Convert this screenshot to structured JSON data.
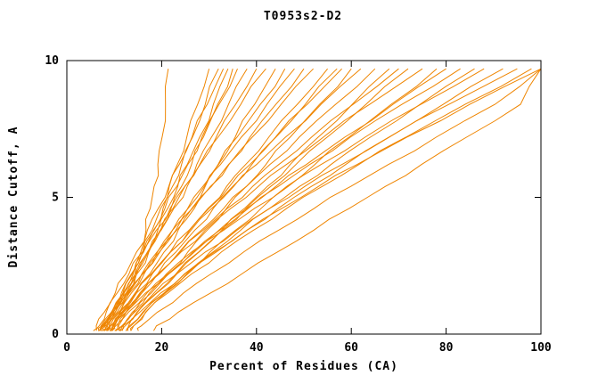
{
  "chart_data": {
    "type": "line",
    "title": "T0953s2-D2",
    "xlabel": "Percent of Residues (CA)",
    "ylabel": "Distance Cutoff, A",
    "xlim": [
      0,
      100
    ],
    "ylim": [
      0,
      10
    ],
    "xticks": [
      0,
      20,
      40,
      60,
      80,
      100
    ],
    "yticks": [
      0,
      5,
      10
    ],
    "grid": false,
    "legend": "none",
    "line_color": "#ef8500",
    "axis_color": "#000000",
    "y_levels": [
      0.3,
      0.8,
      1.5,
      2.2,
      3.0,
      3.8,
      4.6,
      5.4,
      6.2,
      7.2,
      8.4,
      9.7
    ],
    "curves": [
      [
        9.2,
        11.3,
        13.1,
        14.4,
        15.6,
        16.7,
        17.6,
        18.4,
        19.2,
        20.1,
        20.8,
        21.4
      ],
      [
        7.2,
        9.4,
        11.8,
        13.8,
        16.0,
        18.0,
        19.8,
        21.6,
        23.3,
        25.3,
        27.6,
        30.0
      ],
      [
        7.6,
        9.5,
        11.9,
        14.0,
        16.2,
        18.3,
        20.3,
        22.3,
        24.2,
        26.5,
        29.2,
        32.0
      ],
      [
        6.2,
        7.9,
        10.2,
        12.4,
        14.7,
        17.0,
        19.3,
        21.5,
        23.7,
        26.4,
        29.6,
        33.0
      ],
      [
        7.8,
        9.9,
        12.5,
        14.8,
        17.3,
        19.7,
        22.0,
        24.2,
        26.3,
        28.8,
        31.8,
        35.0
      ],
      [
        8.4,
        10.2,
        12.6,
        14.7,
        17.0,
        19.2,
        21.3,
        23.4,
        25.4,
        28.0,
        30.9,
        34.0
      ],
      [
        7.9,
        9.4,
        11.5,
        13.6,
        16.0,
        18.4,
        20.7,
        23.2,
        25.5,
        28.5,
        32.1,
        36.0
      ],
      [
        7.4,
        9.4,
        12.0,
        14.4,
        17.1,
        19.8,
        22.4,
        24.9,
        27.4,
        30.5,
        34.1,
        38.0
      ],
      [
        8.0,
        9.7,
        12.1,
        14.5,
        17.2,
        19.9,
        22.6,
        25.4,
        28.1,
        31.5,
        35.6,
        40.0
      ],
      [
        6.8,
        8.3,
        10.6,
        13.1,
        15.9,
        18.9,
        21.8,
        24.9,
        28.0,
        31.9,
        36.7,
        42.0
      ],
      [
        9.6,
        11.8,
        14.7,
        17.5,
        20.5,
        23.5,
        26.4,
        29.2,
        32.0,
        35.5,
        39.6,
        44.0
      ],
      [
        8.2,
        10.2,
        13.0,
        15.9,
        19.1,
        22.3,
        25.5,
        28.7,
        31.9,
        35.9,
        40.8,
        46.0
      ],
      [
        8.9,
        10.6,
        13.2,
        15.8,
        19.0,
        22.3,
        25.6,
        29.0,
        32.4,
        36.8,
        42.2,
        48.0
      ],
      [
        7.4,
        9.6,
        12.8,
        16.0,
        19.6,
        23.2,
        26.9,
        30.5,
        34.1,
        38.6,
        44.1,
        50.0
      ],
      [
        9.7,
        11.1,
        13.6,
        16.3,
        19.5,
        23.0,
        26.5,
        30.3,
        34.2,
        39.1,
        45.2,
        52.0
      ],
      [
        8.5,
        10.9,
        14.4,
        17.9,
        21.8,
        25.8,
        29.8,
        33.7,
        37.7,
        42.6,
        48.6,
        55.0
      ],
      [
        10.3,
        12.5,
        15.8,
        19.2,
        23.0,
        27.0,
        30.9,
        35.0,
        39.0,
        44.1,
        50.3,
        57.0
      ],
      [
        9.1,
        11.2,
        14.5,
        17.8,
        21.8,
        25.9,
        30.0,
        34.3,
        38.6,
        44.0,
        50.7,
        58.0
      ],
      [
        11.6,
        14.1,
        17.8,
        21.4,
        25.5,
        29.6,
        33.7,
        37.9,
        42.0,
        47.1,
        53.3,
        60.0
      ],
      [
        9.8,
        11.6,
        14.7,
        18.0,
        21.9,
        26.2,
        30.6,
        35.2,
        40.0,
        46.1,
        53.6,
        62.0
      ],
      [
        9.3,
        11.6,
        15.4,
        19.2,
        23.7,
        28.4,
        33.1,
        37.9,
        42.8,
        49.0,
        56.7,
        65.0
      ],
      [
        11.8,
        14.8,
        19.0,
        23.2,
        27.9,
        32.7,
        37.5,
        42.3,
        47.1,
        53.0,
        60.2,
        68.0
      ],
      [
        9.9,
        12.0,
        15.5,
        19.3,
        23.9,
        28.8,
        33.9,
        39.2,
        44.7,
        51.6,
        60.4,
        70.0
      ],
      [
        12.3,
        14.9,
        18.9,
        23.0,
        27.8,
        32.8,
        37.8,
        43.0,
        48.3,
        54.9,
        63.1,
        72.0
      ],
      [
        10.7,
        12.5,
        15.8,
        19.5,
        24.1,
        29.2,
        34.6,
        40.4,
        46.3,
        54.1,
        63.9,
        75.0
      ],
      [
        13.5,
        16.2,
        20.5,
        24.9,
        30.2,
        35.6,
        41.0,
        46.7,
        52.3,
        59.5,
        68.4,
        78.0
      ],
      [
        10.1,
        12.5,
        16.6,
        21.0,
        26.3,
        32.1,
        38.0,
        44.1,
        50.5,
        58.6,
        68.8,
        80.0
      ],
      [
        11.8,
        13.8,
        17.4,
        21.5,
        26.6,
        32.3,
        38.3,
        44.6,
        51.2,
        59.8,
        70.7,
        83.0
      ],
      [
        14.1,
        16.6,
        20.8,
        25.3,
        30.8,
        36.7,
        42.8,
        49.1,
        55.7,
        64.0,
        74.5,
        86.0
      ],
      [
        10.9,
        13.0,
        16.9,
        21.3,
        26.9,
        33.1,
        39.6,
        46.4,
        53.6,
        62.9,
        74.7,
        88.0
      ],
      [
        13.2,
        16.0,
        20.6,
        25.5,
        31.5,
        38.0,
        44.6,
        51.6,
        58.8,
        67.9,
        79.4,
        92.0
      ],
      [
        11.9,
        14.3,
        18.4,
        23.2,
        29.2,
        35.9,
        42.8,
        50.2,
        58.0,
        68.0,
        80.6,
        95.0
      ],
      [
        14.1,
        16.7,
        21.3,
        26.3,
        32.6,
        39.4,
        46.4,
        53.9,
        61.6,
        71.5,
        84.0,
        98.0
      ],
      [
        13.0,
        15.4,
        19.8,
        24.8,
        31.1,
        38.0,
        45.4,
        53.1,
        61.2,
        71.7,
        85.0,
        100.0
      ],
      [
        15.7,
        19.1,
        24.6,
        30.4,
        37.3,
        44.7,
        52.2,
        59.9,
        67.8,
        77.9,
        90.3,
        100.0
      ],
      [
        18.9,
        23.5,
        30.3,
        36.9,
        44.4,
        52.1,
        59.6,
        67.2,
        74.8,
        84.3,
        95.7,
        100.0
      ]
    ]
  }
}
